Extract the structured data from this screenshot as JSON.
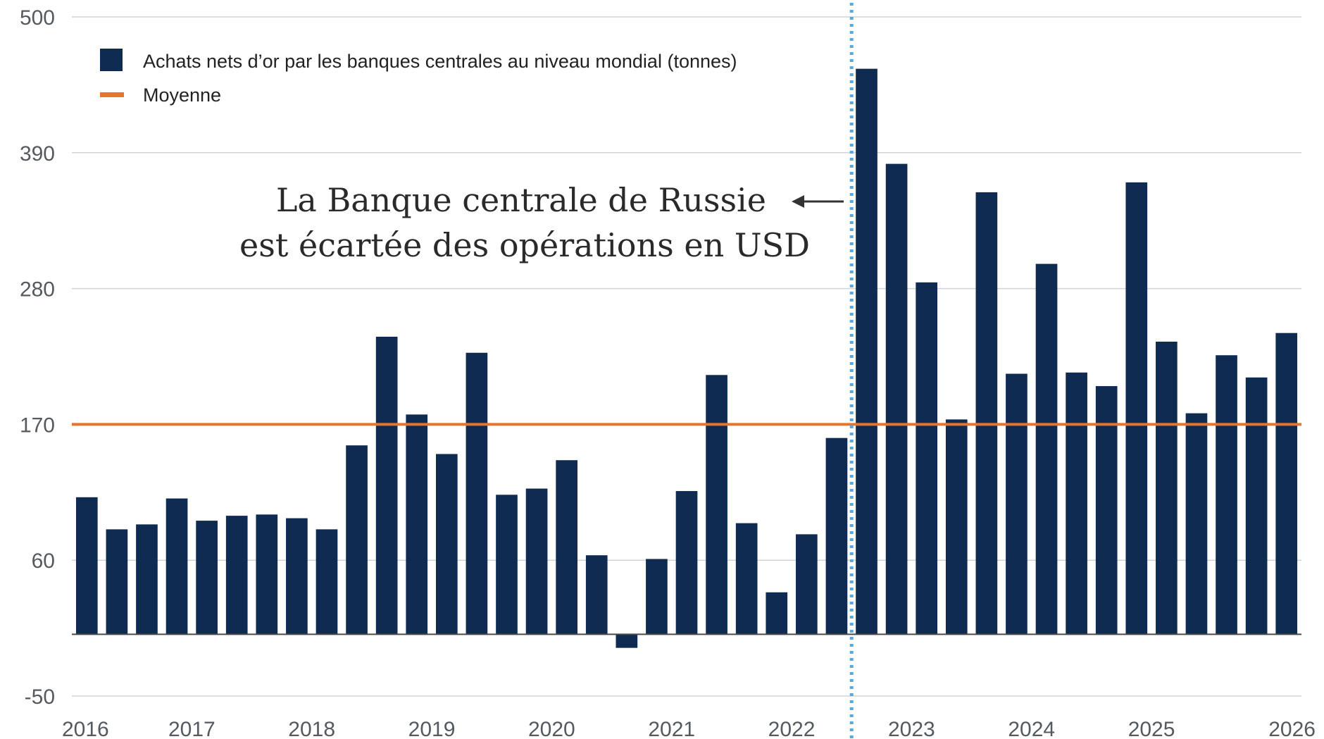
{
  "colors": {
    "bar": "#0f2b52",
    "average": "#e8742a",
    "event_line": "#5aa9dc",
    "grid": "#d0d3d6",
    "arrow": "#333333"
  },
  "legend": {
    "series_label": "Achats nets d’or par les banques centrales au niveau mondial (tonnes)",
    "average_label": "Moyenne"
  },
  "annotation": {
    "line1": "La Banque centrale de Russie",
    "line2": "est écartée des opérations en USD"
  },
  "chart_data": {
    "type": "bar",
    "title": "",
    "xlabel": "",
    "ylabel": "",
    "ylim": [
      -50,
      500
    ],
    "yticks": [
      500,
      390,
      280,
      170,
      60,
      -50
    ],
    "xtick_labels": [
      "2016",
      "2017",
      "2018",
      "2019",
      "2020",
      "2021",
      "2022",
      "2023",
      "2024",
      "2025",
      "2026"
    ],
    "x_start": "2016 Q1",
    "series": [
      {
        "name": "Achats nets d’or par les banques centrales au niveau mondial (tonnes)",
        "values": [
          111,
          85,
          89,
          110,
          92,
          96,
          97,
          94,
          85,
          153,
          241,
          178,
          146,
          228,
          113,
          118,
          141,
          64,
          -11,
          61,
          116,
          210,
          90,
          34,
          81,
          159,
          458,
          381,
          285,
          174,
          358,
          211,
          300,
          212,
          201,
          366,
          237,
          179,
          226,
          208,
          244
        ]
      }
    ],
    "average": 170,
    "event_marker_after_index": 25,
    "legend_position": "top-left",
    "grid": "horizontal"
  }
}
